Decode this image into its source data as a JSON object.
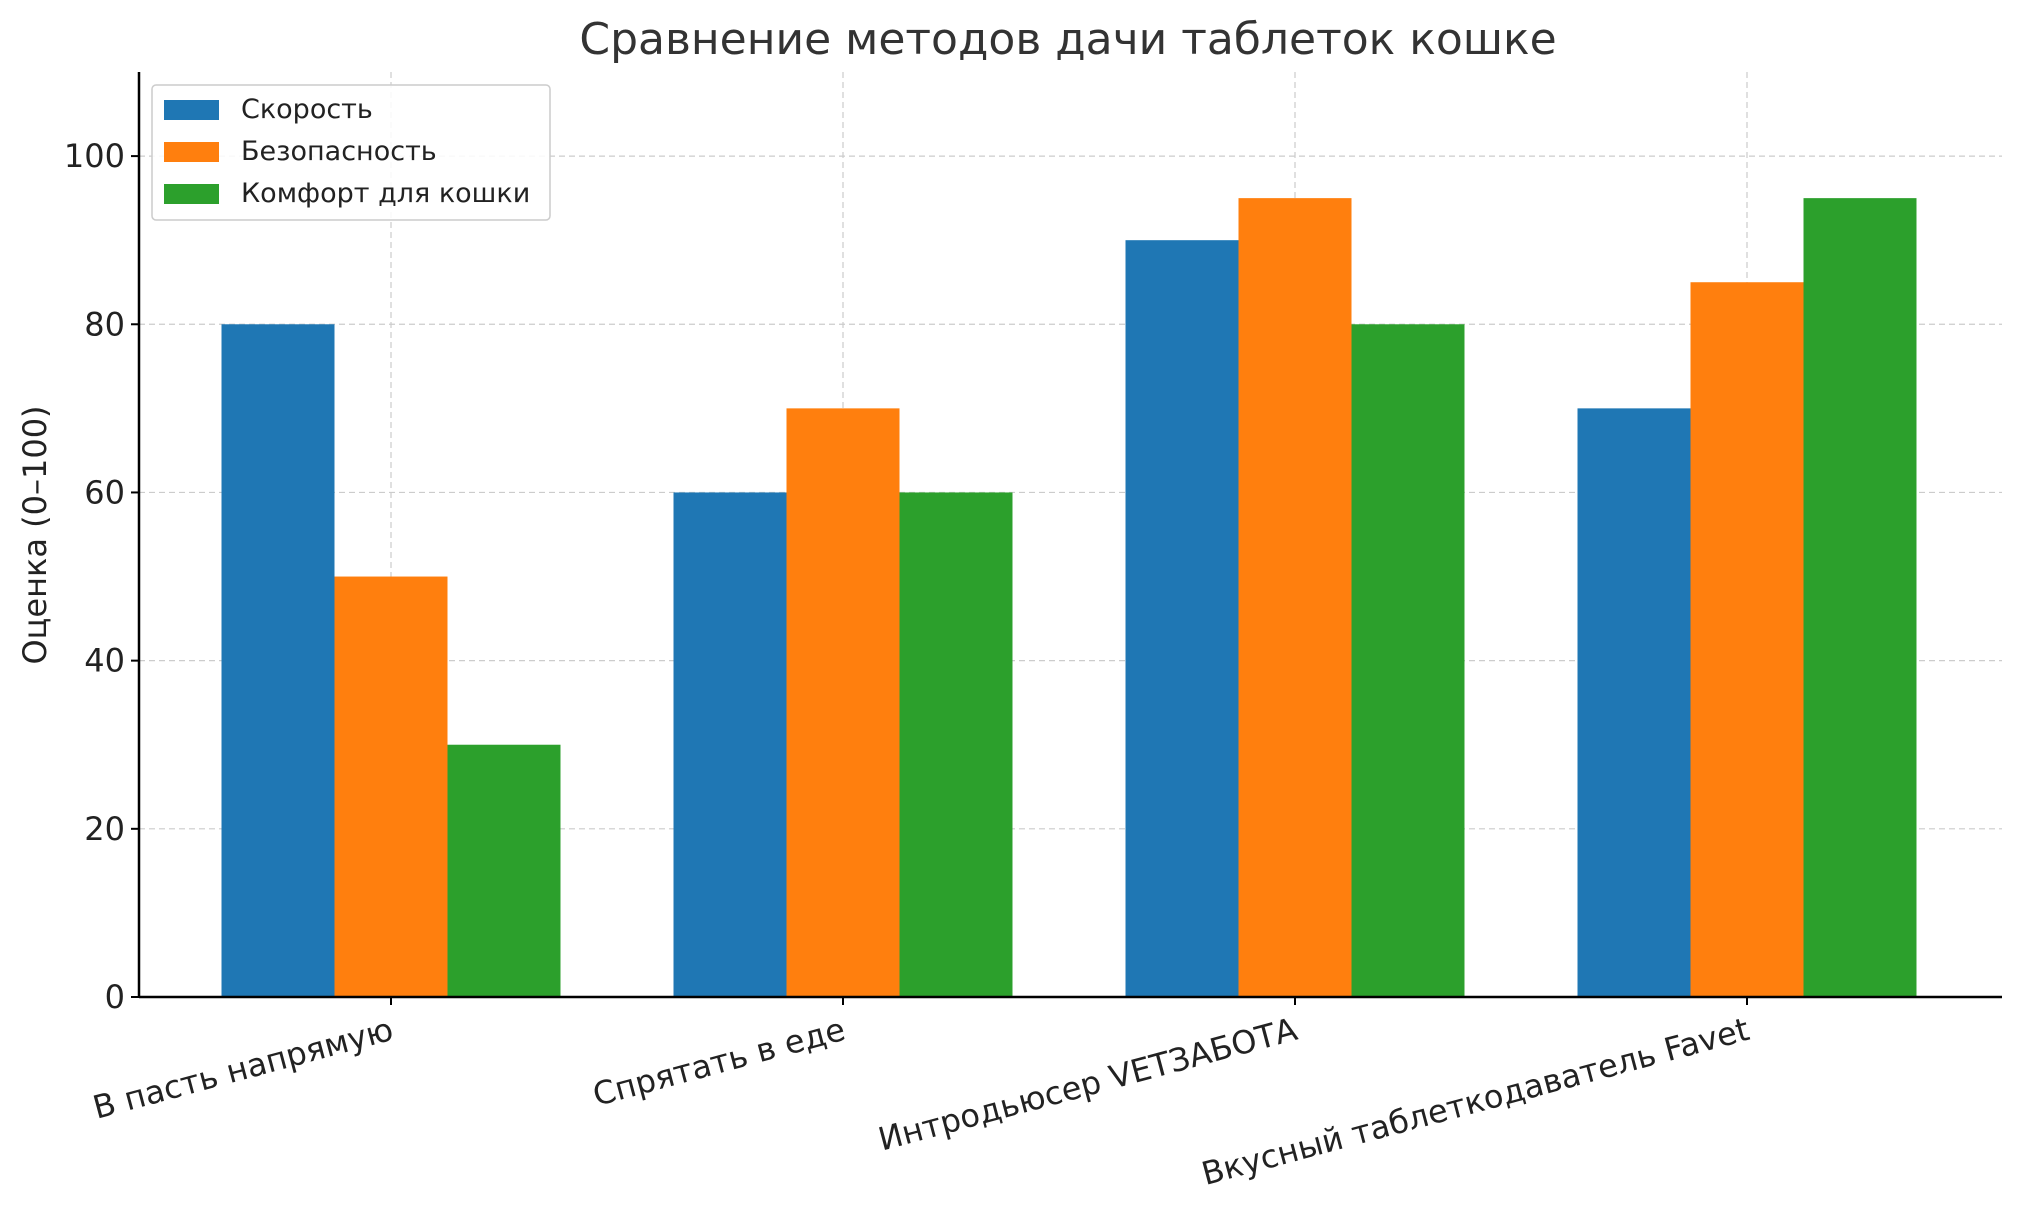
{
  "chart_data": {
    "type": "bar",
    "title": "Сравнение методов дачи таблеток кошке",
    "xlabel": "",
    "ylabel": "Оценка (0–100)",
    "ylim": [
      0,
      110
    ],
    "yticks": [
      0,
      20,
      40,
      60,
      80,
      100
    ],
    "grid": true,
    "legend_position": "top-left",
    "categories": [
      "В пасть напрямую",
      "Спрятать в еде",
      "Интродьюсер VETЗАБОТА",
      "Вкусный таблеткодаватель Favet"
    ],
    "series": [
      {
        "name": "Скорость",
        "color": "#1f77b4",
        "values": [
          80,
          60,
          90,
          70
        ]
      },
      {
        "name": "Безопасность",
        "color": "#ff7f0e",
        "values": [
          50,
          70,
          95,
          85
        ]
      },
      {
        "name": "Комфорт для кошки",
        "color": "#2ca02c",
        "values": [
          30,
          60,
          80,
          95
        ]
      }
    ]
  }
}
